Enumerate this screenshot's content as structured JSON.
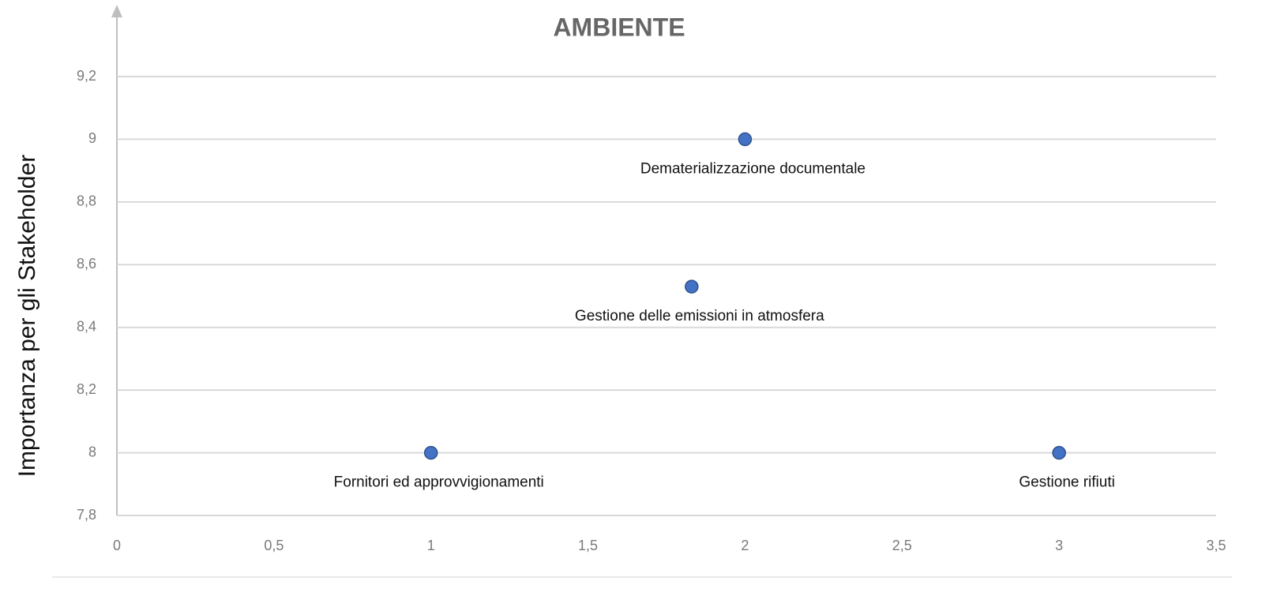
{
  "chart_data": {
    "type": "scatter",
    "title": "AMBIENTE",
    "y_label": "Importanza per gli Stakeholder",
    "x": [
      1,
      2,
      1.83,
      3
    ],
    "values": [
      8,
      9,
      8.53,
      8
    ],
    "point_labels": [
      "Fornitori ed approvvigionamenti",
      "Dematerializzazione documentale",
      "Gestione delle emissioni in atmosfera",
      "Gestione rifiuti"
    ],
    "color": "#4472c4",
    "xlim": [
      0,
      3.5
    ],
    "xticks": [
      0,
      {
        "value": 0.5,
        "label": "0,5"
      },
      1,
      {
        "value": 1.5,
        "label": "1,5"
      },
      2,
      {
        "value": 2.5,
        "label": "2,5"
      },
      3,
      {
        "value": 3.5,
        "label": "3,5"
      }
    ],
    "ylim": [
      7.8,
      9.2
    ],
    "yticks": [
      {
        "value": 7.8,
        "label": "7,8"
      },
      8,
      {
        "value": 8.2,
        "label": "8,2"
      },
      {
        "value": 8.4,
        "label": "8,4"
      },
      {
        "value": 8.6,
        "label": "8,6"
      },
      {
        "value": 8.8,
        "label": "8,8"
      },
      9,
      {
        "value": 9.2,
        "label": "9,2"
      }
    ],
    "grid": true
  }
}
